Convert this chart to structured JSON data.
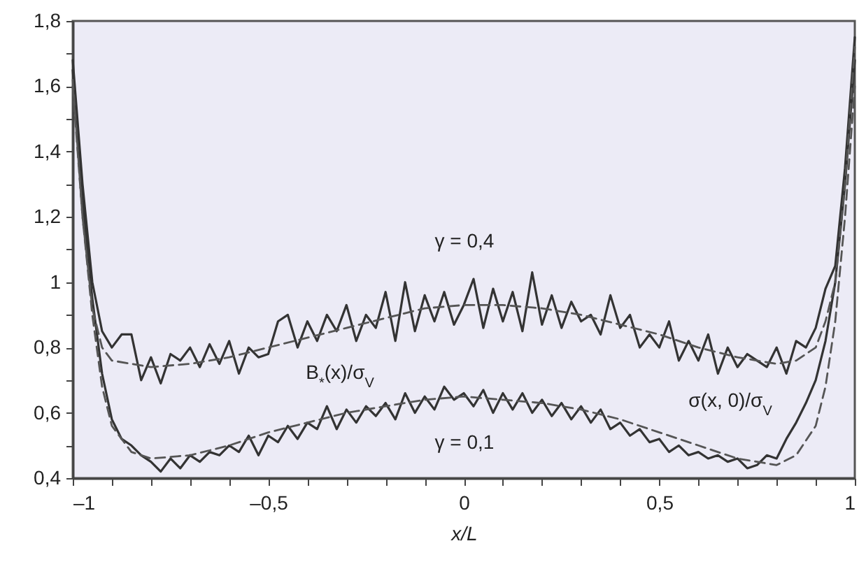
{
  "chart_data": {
    "type": "line",
    "xlabel": "x/L",
    "x": [
      -1,
      -0.975,
      -0.95,
      -0.925,
      -0.9,
      -0.875,
      -0.85,
      -0.825,
      -0.8,
      -0.775,
      -0.75,
      -0.725,
      -0.7,
      -0.675,
      -0.65,
      -0.625,
      -0.6,
      -0.575,
      -0.55,
      -0.525,
      -0.5,
      -0.475,
      -0.45,
      -0.425,
      -0.4,
      -0.375,
      -0.35,
      -0.325,
      -0.3,
      -0.275,
      -0.25,
      -0.225,
      -0.2,
      -0.175,
      -0.15,
      -0.125,
      -0.1,
      -0.075,
      -0.05,
      -0.025,
      0,
      0.025,
      0.05,
      0.075,
      0.1,
      0.125,
      0.15,
      0.175,
      0.2,
      0.225,
      0.25,
      0.275,
      0.3,
      0.325,
      0.35,
      0.375,
      0.4,
      0.425,
      0.45,
      0.475,
      0.5,
      0.525,
      0.55,
      0.575,
      0.6,
      0.625,
      0.65,
      0.675,
      0.7,
      0.725,
      0.75,
      0.775,
      0.8,
      0.825,
      0.85,
      0.875,
      0.9,
      0.925,
      0.95,
      0.975,
      1
    ],
    "series": [
      {
        "color": "#333333",
        "line_style": "solid",
        "values": [
          1.68,
          1.3,
          1.0,
          0.85,
          0.8,
          0.84,
          0.84,
          0.7,
          0.77,
          0.69,
          0.78,
          0.76,
          0.8,
          0.74,
          0.81,
          0.75,
          0.82,
          0.72,
          0.8,
          0.77,
          0.78,
          0.88,
          0.9,
          0.8,
          0.88,
          0.82,
          0.9,
          0.85,
          0.93,
          0.82,
          0.9,
          0.86,
          0.97,
          0.82,
          1.0,
          0.85,
          0.96,
          0.88,
          0.97,
          0.87,
          0.93,
          1.01,
          0.86,
          0.98,
          0.88,
          0.97,
          0.85,
          1.03,
          0.87,
          0.96,
          0.86,
          0.94,
          0.88,
          0.9,
          0.84,
          0.96,
          0.86,
          0.9,
          0.8,
          0.84,
          0.8,
          0.88,
          0.76,
          0.82,
          0.76,
          0.84,
          0.72,
          0.8,
          0.74,
          0.78,
          0.76,
          0.74,
          0.8,
          0.72,
          0.82,
          0.8,
          0.86,
          0.98,
          1.05,
          1.35,
          1.75
        ]
      },
      {
        "color": "#333333",
        "line_style": "solid",
        "values": [
          1.65,
          1.25,
          0.95,
          0.72,
          0.58,
          0.52,
          0.5,
          0.47,
          0.45,
          0.42,
          0.46,
          0.43,
          0.47,
          0.45,
          0.48,
          0.47,
          0.5,
          0.48,
          0.53,
          0.47,
          0.53,
          0.51,
          0.56,
          0.52,
          0.57,
          0.55,
          0.62,
          0.55,
          0.61,
          0.57,
          0.62,
          0.59,
          0.63,
          0.58,
          0.66,
          0.6,
          0.65,
          0.61,
          0.68,
          0.64,
          0.66,
          0.62,
          0.67,
          0.6,
          0.66,
          0.61,
          0.66,
          0.6,
          0.64,
          0.59,
          0.63,
          0.58,
          0.62,
          0.57,
          0.61,
          0.55,
          0.57,
          0.53,
          0.55,
          0.51,
          0.52,
          0.48,
          0.5,
          0.47,
          0.48,
          0.46,
          0.47,
          0.45,
          0.46,
          0.43,
          0.44,
          0.47,
          0.46,
          0.52,
          0.57,
          0.63,
          0.7,
          0.82,
          1.0,
          1.3,
          1.68
        ]
      },
      {
        "color": "#555555",
        "line_style": "dashed",
        "x": [
          -1,
          -0.975,
          -0.95,
          -0.925,
          -0.9,
          -0.85,
          -0.8,
          -0.7,
          -0.6,
          -0.5,
          -0.4,
          -0.3,
          -0.2,
          -0.1,
          0,
          0.1,
          0.2,
          0.3,
          0.4,
          0.5,
          0.6,
          0.7,
          0.8,
          0.85,
          0.9,
          0.925,
          0.95,
          0.975,
          1
        ],
        "values": [
          1.62,
          1.2,
          0.92,
          0.8,
          0.76,
          0.75,
          0.74,
          0.75,
          0.77,
          0.8,
          0.83,
          0.86,
          0.89,
          0.92,
          0.93,
          0.93,
          0.92,
          0.9,
          0.87,
          0.84,
          0.8,
          0.77,
          0.75,
          0.76,
          0.8,
          0.88,
          1.0,
          1.3,
          1.72
        ]
      },
      {
        "color": "#555555",
        "line_style": "dashed",
        "x": [
          -1,
          -0.975,
          -0.95,
          -0.925,
          -0.9,
          -0.85,
          -0.8,
          -0.7,
          -0.6,
          -0.5,
          -0.4,
          -0.3,
          -0.2,
          -0.1,
          0,
          0.1,
          0.2,
          0.3,
          0.4,
          0.5,
          0.6,
          0.7,
          0.8,
          0.85,
          0.9,
          0.925,
          0.95,
          0.975,
          1
        ],
        "values": [
          1.6,
          1.2,
          0.9,
          0.68,
          0.56,
          0.48,
          0.46,
          0.47,
          0.5,
          0.54,
          0.57,
          0.6,
          0.62,
          0.64,
          0.65,
          0.64,
          0.63,
          0.61,
          0.58,
          0.54,
          0.5,
          0.46,
          0.44,
          0.47,
          0.56,
          0.68,
          0.88,
          1.2,
          1.6
        ]
      }
    ],
    "annotations": [
      "γ = 0,4",
      "γ = 0,1",
      "B$_{*}$(x)/σ$_{V}$",
      "σ(x, 0)/σ$_{V}$"
    ],
    "xlim": [
      -1,
      1
    ],
    "xticks": [
      {
        "value": -1,
        "label": "–1"
      },
      {
        "value": -0.9,
        "label": null
      },
      {
        "value": -0.8,
        "label": null
      },
      {
        "value": -0.7,
        "label": null
      },
      {
        "value": -0.6,
        "label": null
      },
      {
        "value": -0.5,
        "label": "–0,5"
      },
      {
        "value": -0.4,
        "label": null
      },
      {
        "value": -0.3,
        "label": null
      },
      {
        "value": -0.2,
        "label": null
      },
      {
        "value": -0.1,
        "label": null
      },
      0,
      {
        "value": 0.1,
        "label": null
      },
      {
        "value": 0.2,
        "label": null
      },
      {
        "value": 0.3,
        "label": null
      },
      {
        "value": 0.4,
        "label": null
      },
      {
        "value": 0.5,
        "label": "0,5"
      },
      {
        "value": 0.6,
        "label": null
      },
      {
        "value": 0.7,
        "label": null
      },
      {
        "value": 0.8,
        "label": null
      },
      {
        "value": 0.9,
        "label": null
      },
      1
    ],
    "ylim": [
      0.4,
      1.8
    ],
    "yticks": [
      {
        "value": 0.4,
        "label": "0,4"
      },
      {
        "value": 0.5,
        "label": null
      },
      {
        "value": 0.6,
        "label": "0,6"
      },
      {
        "value": 0.7,
        "label": null
      },
      {
        "value": 0.8,
        "label": "0,8"
      },
      {
        "value": 0.9,
        "label": null
      },
      1,
      {
        "value": 1.1,
        "label": null
      },
      {
        "value": 1.2,
        "label": "1,2"
      },
      {
        "value": 1.3,
        "label": null
      },
      {
        "value": 1.4,
        "label": "1,4"
      },
      {
        "value": 1.5,
        "label": null
      },
      {
        "value": 1.6,
        "label": "1,6"
      },
      {
        "value": 1.7,
        "label": null
      },
      {
        "value": 1.8,
        "label": "1,8"
      }
    ],
    "grid": false,
    "marker": "none"
  }
}
